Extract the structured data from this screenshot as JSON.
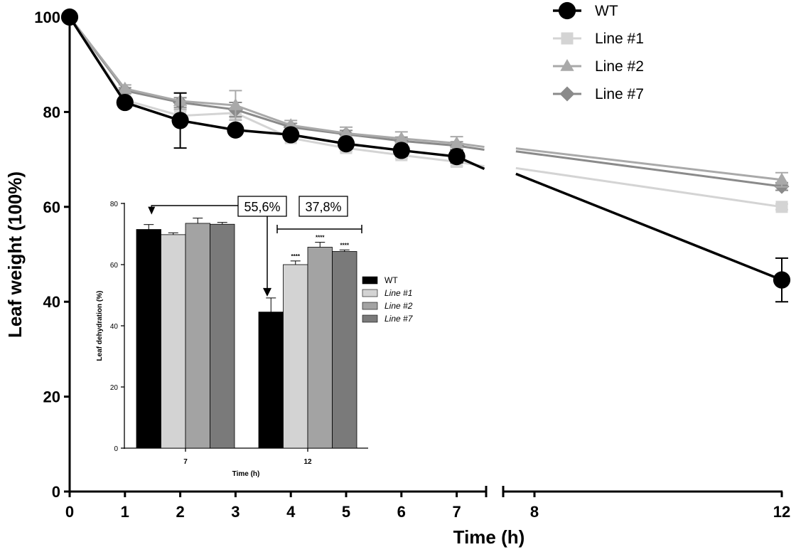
{
  "chart_data": [
    {
      "type": "line",
      "title": "",
      "xlabel": "Time (h)",
      "ylabel": "Leaf weight (100%)",
      "xlim": [
        0,
        12
      ],
      "ylim": [
        0,
        100
      ],
      "x_axis_break": [
        7.5,
        7.7
      ],
      "xticks": [
        "0",
        "1",
        "2",
        "3",
        "4",
        "5",
        "6",
        "7",
        "8",
        "12"
      ],
      "yticks": [
        "0",
        "20",
        "40",
        "60",
        "80",
        "100"
      ],
      "legend": "top-right",
      "series": [
        {
          "name": "WT",
          "color": "#000000",
          "marker": "circle",
          "x": [
            0,
            1,
            2,
            3,
            4,
            5,
            6,
            7,
            12
          ],
          "values": [
            100,
            82,
            78.2,
            76.2,
            75.2,
            73.3,
            71.9,
            70.6,
            44.6
          ],
          "errors": [
            0,
            0.8,
            5.8,
            0.5,
            0.8,
            0.8,
            1.2,
            1.3,
            4.6
          ]
        },
        {
          "name": "Line #1",
          "color": "#d4d4d4",
          "marker": "square",
          "x": [
            0,
            1,
            2,
            3,
            4,
            5,
            6,
            7,
            12
          ],
          "values": [
            100,
            82.5,
            79.2,
            79.8,
            74.5,
            72.4,
            70.9,
            69.5,
            60
          ],
          "errors": [
            0,
            0.7,
            1.1,
            2.2,
            0.5,
            0.7,
            0.7,
            0.9,
            0.6
          ]
        },
        {
          "name": "Line #2",
          "color": "#a9a9a9",
          "marker": "triangle",
          "x": [
            0,
            1,
            2,
            3,
            4,
            5,
            6,
            7,
            12
          ],
          "values": [
            100,
            84.9,
            82.3,
            81.4,
            77.2,
            75.5,
            74.4,
            73.4,
            65.7
          ],
          "errors": [
            0,
            0.8,
            1.7,
            3.1,
            1,
            1.3,
            1.4,
            1.4,
            1.5
          ]
        },
        {
          "name": "Line #7",
          "color": "#8a8a8a",
          "marker": "diamond",
          "x": [
            0,
            1,
            2,
            3,
            4,
            5,
            6,
            7,
            12
          ],
          "values": [
            100,
            84.5,
            82,
            80.5,
            76.8,
            75.3,
            73.9,
            72.9,
            64.3
          ],
          "errors": [
            0,
            0.6,
            1,
            1.5,
            0.8,
            0.8,
            0.8,
            0.8,
            0.8
          ]
        }
      ]
    },
    {
      "type": "bar",
      "title": "",
      "xlabel": "Time (h)",
      "ylabel": "Leaf dehydration (%)",
      "ylim": [
        0,
        80
      ],
      "yticks": [
        "0",
        "20",
        "40",
        "60",
        "80"
      ],
      "categories": [
        "7",
        "12"
      ],
      "legend": "right",
      "series": [
        {
          "name": "WT",
          "italic": false,
          "color": "#000000",
          "values": [
            71.5,
            44.5
          ],
          "errors": [
            1.6,
            4.6
          ]
        },
        {
          "name": "Line #1",
          "italic": true,
          "color": "#d3d3d3",
          "values": [
            69.8,
            60
          ],
          "errors": [
            0.6,
            1.2
          ]
        },
        {
          "name": "Line #2",
          "italic": true,
          "color": "#a3a3a3",
          "values": [
            73.5,
            65.7
          ],
          "errors": [
            1.7,
            1.6
          ]
        },
        {
          "name": "Line #7",
          "italic": true,
          "color": "#7a7a7a",
          "values": [
            73.2,
            64.3
          ],
          "errors": [
            0.6,
            0.5
          ]
        }
      ],
      "significance": [
        "",
        "****",
        "****",
        "****"
      ],
      "annotations": [
        "55,6%",
        "37,8%"
      ]
    }
  ]
}
